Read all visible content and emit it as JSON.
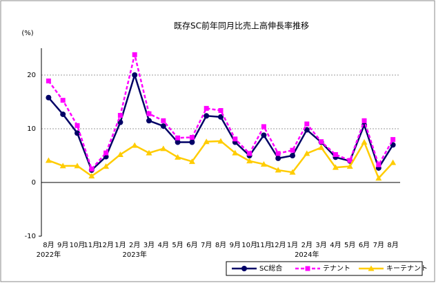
{
  "chart_data": {
    "type": "line",
    "title": "既存SC前年同月比売上高伸長率推移",
    "y_label": "(%)",
    "categories": [
      "8月",
      "9月",
      "10月",
      "11月",
      "12月",
      "1月",
      "2月",
      "3月",
      "4月",
      "5月",
      "6月",
      "7月",
      "8月",
      "9月",
      "10月",
      "11月",
      "12月",
      "1月",
      "2月",
      "3月",
      "4月",
      "5月",
      "6月",
      "7月",
      "8月"
    ],
    "category_years": [
      "2022年",
      null,
      null,
      null,
      null,
      null,
      "2023年",
      null,
      null,
      null,
      null,
      null,
      null,
      null,
      null,
      null,
      null,
      null,
      "2024年",
      null,
      null,
      null,
      null,
      null,
      null
    ],
    "series": [
      {
        "name": "SC総合",
        "color": "#000066",
        "marker": "circle",
        "dashed": false,
        "values": [
          15.8,
          12.7,
          9.2,
          2.3,
          4.8,
          11.2,
          20.0,
          11.5,
          10.5,
          7.5,
          7.5,
          12.4,
          12.2,
          7.5,
          5.0,
          8.8,
          4.5,
          5.0,
          9.8,
          7.5,
          4.7,
          4.0,
          10.7,
          2.7,
          7.0
        ]
      },
      {
        "name": "テナント",
        "color": "#ff00ff",
        "marker": "square",
        "dashed": true,
        "values": [
          18.9,
          15.3,
          10.6,
          2.5,
          5.5,
          12.5,
          23.8,
          12.8,
          11.5,
          8.3,
          8.4,
          13.8,
          13.4,
          8.1,
          5.4,
          10.4,
          5.4,
          6.0,
          10.9,
          7.6,
          5.2,
          4.1,
          11.5,
          3.3,
          8.0
        ]
      },
      {
        "name": "キーテナント",
        "color": "#ffcc00",
        "marker": "triangle",
        "dashed": false,
        "values": [
          4.1,
          3.1,
          3.1,
          1.2,
          3.0,
          5.2,
          6.9,
          5.5,
          6.3,
          4.7,
          3.9,
          7.6,
          7.7,
          5.5,
          4.0,
          3.4,
          2.3,
          1.9,
          5.4,
          6.5,
          2.8,
          3.0,
          7.5,
          0.8,
          3.7
        ]
      }
    ],
    "ylim": [
      -10,
      25
    ],
    "yticks": [
      -10,
      0,
      10,
      20
    ],
    "grid": true,
    "legend": "bottom-right"
  }
}
